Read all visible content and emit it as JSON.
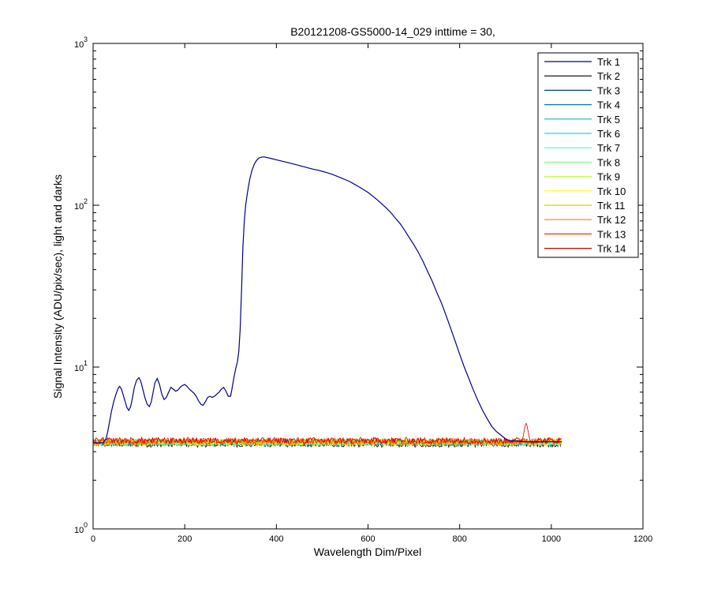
{
  "chart_data": {
    "type": "line",
    "title": "B20121208-GS5000-14_029 inttime = 30,",
    "xlabel": "Wavelength Dim/Pixel",
    "ylabel": "Signal Intensity (ADU/pix/sec), light and darks",
    "xlim": [
      0,
      1200
    ],
    "ylim": [
      1,
      1000
    ],
    "yscale": "log",
    "legend_position": "top-right",
    "x_ticks": [
      {
        "value": 0,
        "label": "0"
      },
      {
        "value": 200,
        "label": "200"
      },
      {
        "value": 400,
        "label": "400"
      },
      {
        "value": 600,
        "label": "600"
      },
      {
        "value": 800,
        "label": "800"
      },
      {
        "value": 1000,
        "label": "1000"
      },
      {
        "value": 1200,
        "label": "1200"
      }
    ],
    "y_ticks": [
      {
        "value": 1,
        "base": "10",
        "exponent": "0"
      },
      {
        "value": 10,
        "base": "10",
        "exponent": "1"
      },
      {
        "value": 100,
        "base": "10",
        "exponent": "2"
      },
      {
        "value": 1000,
        "base": "10",
        "exponent": "3"
      }
    ],
    "signal_track": {
      "name": "Trk 1",
      "color": "#00008f",
      "points": [
        [
          0,
          3.4
        ],
        [
          22,
          3.4
        ],
        [
          28,
          3.6
        ],
        [
          32,
          4.0
        ],
        [
          36,
          4.6
        ],
        [
          40,
          5.3
        ],
        [
          45,
          6.1
        ],
        [
          50,
          6.8
        ],
        [
          55,
          7.4
        ],
        [
          58,
          7.6
        ],
        [
          62,
          7.3
        ],
        [
          66,
          6.7
        ],
        [
          70,
          6.1
        ],
        [
          74,
          5.6
        ],
        [
          78,
          5.4
        ],
        [
          82,
          5.7
        ],
        [
          86,
          6.5
        ],
        [
          90,
          7.5
        ],
        [
          95,
          8.3
        ],
        [
          100,
          8.6
        ],
        [
          104,
          8.2
        ],
        [
          108,
          7.4
        ],
        [
          113,
          6.5
        ],
        [
          118,
          5.9
        ],
        [
          123,
          5.7
        ],
        [
          127,
          6.1
        ],
        [
          131,
          7.0
        ],
        [
          135,
          8.0
        ],
        [
          140,
          8.5
        ],
        [
          145,
          7.8
        ],
        [
          150,
          6.8
        ],
        [
          155,
          6.3
        ],
        [
          160,
          6.5
        ],
        [
          165,
          7.0
        ],
        [
          170,
          7.5
        ],
        [
          175,
          7.3
        ],
        [
          180,
          7.1
        ],
        [
          185,
          7.2
        ],
        [
          190,
          7.5
        ],
        [
          195,
          7.7
        ],
        [
          200,
          7.8
        ],
        [
          205,
          7.6
        ],
        [
          210,
          7.3
        ],
        [
          215,
          7.1
        ],
        [
          220,
          6.9
        ],
        [
          225,
          6.6
        ],
        [
          230,
          6.2
        ],
        [
          235,
          5.9
        ],
        [
          240,
          5.8
        ],
        [
          245,
          6.1
        ],
        [
          250,
          6.5
        ],
        [
          255,
          6.6
        ],
        [
          260,
          6.5
        ],
        [
          265,
          6.6
        ],
        [
          270,
          6.8
        ],
        [
          275,
          7.0
        ],
        [
          280,
          7.3
        ],
        [
          285,
          7.5
        ],
        [
          290,
          7.1
        ],
        [
          295,
          6.6
        ],
        [
          300,
          6.6
        ],
        [
          303,
          7.3
        ],
        [
          307,
          8.5
        ],
        [
          311,
          9.7
        ],
        [
          315,
          10.8
        ],
        [
          318,
          12.5
        ],
        [
          321,
          17
        ],
        [
          324,
          30
        ],
        [
          327,
          55
        ],
        [
          330,
          80
        ],
        [
          333,
          100
        ],
        [
          337,
          120
        ],
        [
          342,
          145
        ],
        [
          347,
          165
        ],
        [
          352,
          180
        ],
        [
          357,
          190
        ],
        [
          362,
          196
        ],
        [
          367,
          198
        ],
        [
          372,
          199
        ],
        [
          380,
          197
        ],
        [
          390,
          194
        ],
        [
          400,
          191
        ],
        [
          410,
          188
        ],
        [
          420,
          185
        ],
        [
          430,
          182
        ],
        [
          440,
          179
        ],
        [
          450,
          176
        ],
        [
          460,
          173
        ],
        [
          470,
          170
        ],
        [
          480,
          167
        ],
        [
          490,
          165
        ],
        [
          500,
          162
        ],
        [
          510,
          159
        ],
        [
          520,
          156
        ],
        [
          530,
          152
        ],
        [
          540,
          148
        ],
        [
          550,
          144
        ],
        [
          560,
          140
        ],
        [
          570,
          135
        ],
        [
          580,
          130
        ],
        [
          590,
          125
        ],
        [
          600,
          120
        ],
        [
          610,
          114
        ],
        [
          620,
          108
        ],
        [
          630,
          102
        ],
        [
          640,
          96
        ],
        [
          650,
          90
        ],
        [
          660,
          83
        ],
        [
          670,
          77
        ],
        [
          680,
          70
        ],
        [
          690,
          63
        ],
        [
          700,
          57
        ],
        [
          710,
          51
        ],
        [
          720,
          45
        ],
        [
          730,
          39
        ],
        [
          740,
          34
        ],
        [
          750,
          29
        ],
        [
          760,
          25
        ],
        [
          770,
          21
        ],
        [
          780,
          17.5
        ],
        [
          790,
          14.5
        ],
        [
          800,
          12
        ],
        [
          810,
          10
        ],
        [
          820,
          8.5
        ],
        [
          830,
          7.2
        ],
        [
          840,
          6.2
        ],
        [
          850,
          5.4
        ],
        [
          860,
          4.8
        ],
        [
          870,
          4.3
        ],
        [
          880,
          4.0
        ],
        [
          890,
          3.8
        ],
        [
          900,
          3.6
        ],
        [
          910,
          3.5
        ],
        [
          920,
          3.5
        ],
        [
          940,
          3.45
        ],
        [
          960,
          3.45
        ],
        [
          980,
          3.45
        ],
        [
          1000,
          3.45
        ],
        [
          1023,
          3.45
        ]
      ]
    },
    "dark_tracks": [
      {
        "name": "Trk 2",
        "color": "#000000",
        "level": 3.35
      },
      {
        "name": "Trk 3",
        "color": "#00408f",
        "level": 3.38
      },
      {
        "name": "Trk 4",
        "color": "#007f8f",
        "level": 3.4
      },
      {
        "name": "Trk 5",
        "color": "#00bfbf",
        "level": 3.4
      },
      {
        "name": "Trk 6",
        "color": "#00e5e5",
        "level": 3.42
      },
      {
        "name": "Trk 7",
        "color": "#40ffd0",
        "level": 3.42
      },
      {
        "name": "Trk 8",
        "color": "#80ff80",
        "level": 3.43
      },
      {
        "name": "Trk 9",
        "color": "#c0ff40",
        "level": 3.43
      },
      {
        "name": "Trk 10",
        "color": "#ffff00",
        "level": 3.44
      },
      {
        "name": "Trk 11",
        "color": "#ffbf00",
        "level": 3.45
      },
      {
        "name": "Trk 12",
        "color": "#ff8000",
        "level": 3.46
      },
      {
        "name": "Trk 13",
        "color": "#ff3000",
        "level": 3.48
      },
      {
        "name": "Trk 14",
        "color": "#cc0000",
        "level": 3.52,
        "peak": {
          "x": 945,
          "value": 4.6
        }
      }
    ],
    "dark_x_range": [
      0,
      1023
    ]
  }
}
